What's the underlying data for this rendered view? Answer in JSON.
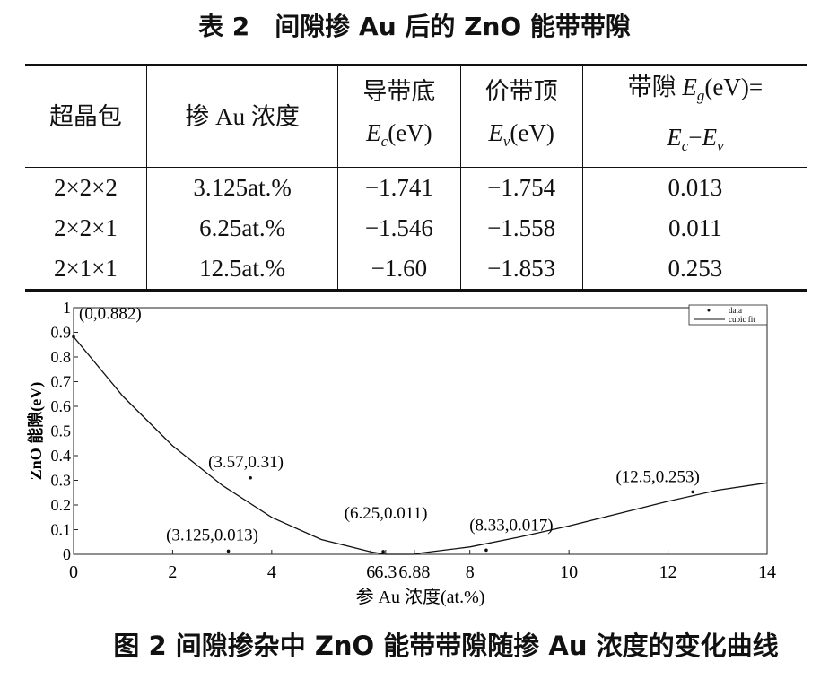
{
  "table": {
    "title": "表 2　间隙掺 Au 后的 ZnO 能带带隙",
    "header": [
      [
        [
          {
            "text": "超晶包"
          }
        ]
      ],
      [
        [
          {
            "text": "掺 Au 浓度"
          }
        ]
      ],
      [
        [
          {
            "text": "导带底"
          }
        ],
        [
          {
            "text": "E",
            "style": "italic"
          },
          {
            "text": "c",
            "style": "sub"
          },
          {
            "text": "(eV)"
          }
        ]
      ],
      [
        [
          {
            "text": "价带顶"
          }
        ],
        [
          {
            "text": "E",
            "style": "italic"
          },
          {
            "text": "v",
            "style": "sub"
          },
          {
            "text": "(eV)"
          }
        ]
      ],
      [
        [
          {
            "text": "带隙 "
          },
          {
            "text": "E",
            "style": "italic"
          },
          {
            "text": "g",
            "style": "sub"
          },
          {
            "text": "(eV)="
          }
        ],
        [
          {
            "text": "E",
            "style": "italic"
          },
          {
            "text": "c",
            "style": "sub"
          },
          {
            "text": "−"
          },
          {
            "text": "E",
            "style": "italic"
          },
          {
            "text": "v",
            "style": "sub"
          }
        ]
      ]
    ],
    "rows": [
      [
        "2×2×2",
        "3.125at.%",
        "−1.741",
        "−1.754",
        "0.013"
      ],
      [
        "2×2×1",
        "6.25at.%",
        "−1.546",
        "−1.558",
        "0.011"
      ],
      [
        "2×1×1",
        "12.5at.%",
        "−1.60",
        "−1.853",
        "0.253"
      ]
    ]
  },
  "chart_data": {
    "type": "scatter",
    "xlabel": "参 Au 浓度(at.%)",
    "ylabel": "ZnO 能隙(eV)",
    "xlim": [
      0,
      14
    ],
    "ylim": [
      0,
      1
    ],
    "xticks": [
      0,
      2,
      4,
      6,
      6.3,
      6.88,
      8,
      10,
      12,
      14
    ],
    "yticks": [
      0,
      0.1,
      0.2,
      0.3,
      0.4,
      0.5,
      0.6,
      0.7,
      0.8,
      0.9,
      1
    ],
    "grid": false,
    "legend": "upper right",
    "series": [
      {
        "name": "data",
        "type": "scatter",
        "color": "#111111",
        "x": [
          0,
          3.125,
          3.57,
          6.25,
          8.33,
          12.5
        ],
        "values": [
          0.882,
          0.013,
          0.31,
          0.011,
          0.017,
          0.253
        ],
        "value_labels": [
          "(0,0.882)",
          "(3.125,0.013)",
          "(3.57,0.31)",
          "(6.25,0.011)",
          "(8.33,0.017)",
          "(12.5,0.253)"
        ]
      },
      {
        "name": "cubic fit",
        "type": "line",
        "color": "#111111",
        "x": [
          0,
          1,
          2,
          3,
          4,
          5,
          6,
          6.3,
          6.88,
          7,
          8,
          9,
          10,
          11,
          12,
          13,
          14
        ],
        "values": [
          0.882,
          0.64,
          0.44,
          0.28,
          0.15,
          0.06,
          0.01,
          0,
          0,
          0.005,
          0.03,
          0.07,
          0.115,
          0.165,
          0.215,
          0.26,
          0.29
        ]
      }
    ]
  },
  "caption": "图 2 间隙掺杂中 ZnO 能带带隙随掺 Au 浓度的变化曲线"
}
